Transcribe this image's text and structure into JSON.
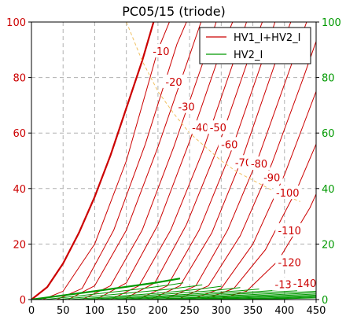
{
  "chart_data": {
    "type": "line",
    "title": "PC05/15 (triode)",
    "xlabel": "",
    "ylabel": "",
    "xlim": [
      0,
      450
    ],
    "ylim": [
      0,
      100
    ],
    "y2lim": [
      0,
      100
    ],
    "grid": true,
    "legend": {
      "placement": "top-right",
      "entries": [
        "HV1_I+HV2_I",
        "HV2_I"
      ]
    },
    "x_ticks": [
      "0",
      "50",
      "100",
      "150",
      "200",
      "250",
      "300",
      "350",
      "400",
      "450"
    ],
    "y_ticks": [
      "0",
      "20",
      "40",
      "60",
      "80",
      "100"
    ],
    "y2_ticks": [
      "0",
      "20",
      "40",
      "60",
      "80",
      "100"
    ],
    "colors": {
      "total_current": "#cc0000",
      "screen_current": "#009900",
      "y_left_ticks": "#cc0000",
      "y_right_ticks": "#009900",
      "dissipation_limit": "#f0c060",
      "grid": "#b0b0b0"
    },
    "series": [
      {
        "name": "HV1_I+HV2_I",
        "grid_voltage": "0",
        "x": [
          0,
          25,
          50,
          75,
          100,
          125,
          150,
          175,
          193
        ],
        "y": [
          0,
          4.5,
          13,
          24,
          37,
          52,
          69,
          86,
          100
        ]
      },
      {
        "grid_voltage": "-10",
        "x": [
          18,
          50,
          100,
          150,
          200,
          218
        ],
        "y": [
          0,
          3,
          20,
          50,
          90,
          100
        ]
      },
      {
        "grid_voltage": "-20",
        "x": [
          40,
          80,
          130,
          180,
          230,
          245
        ],
        "y": [
          0,
          4,
          25,
          56,
          92,
          100
        ]
      },
      {
        "grid_voltage": "-30",
        "x": [
          58,
          100,
          150,
          200,
          250,
          268
        ],
        "y": [
          0,
          5,
          25,
          55,
          88,
          100
        ]
      },
      {
        "grid_voltage": "-40",
        "x": [
          80,
          125,
          175,
          225,
          275,
          292
        ],
        "y": [
          0,
          5,
          25,
          55,
          88,
          100
        ]
      },
      {
        "grid_voltage": "-50",
        "x": [
          102,
          150,
          200,
          250,
          300,
          318
        ],
        "y": [
          0,
          6,
          27,
          57,
          90,
          100
        ]
      },
      {
        "grid_voltage": "-60",
        "x": [
          125,
          170,
          220,
          270,
          320,
          340
        ],
        "y": [
          0,
          5,
          25,
          53,
          86,
          100
        ]
      },
      {
        "grid_voltage": "-70",
        "x": [
          145,
          195,
          245,
          295,
          345,
          365
        ],
        "y": [
          0,
          6,
          27,
          55,
          88,
          100
        ]
      },
      {
        "grid_voltage": "-80",
        "x": [
          168,
          215,
          265,
          315,
          365,
          385
        ],
        "y": [
          0,
          5,
          25,
          53,
          86,
          100
        ]
      },
      {
        "grid_voltage": "-90",
        "x": [
          188,
          235,
          285,
          335,
          385,
          410
        ],
        "y": [
          0,
          5,
          24,
          52,
          85,
          100
        ]
      },
      {
        "grid_voltage": "-100",
        "x": [
          210,
          260,
          310,
          360,
          410,
          435
        ],
        "y": [
          0,
          5,
          25,
          52,
          84,
          100
        ]
      },
      {
        "grid_voltage": "-110",
        "x": [
          230,
          280,
          330,
          380,
          430,
          450
        ],
        "y": [
          0,
          5,
          23,
          49,
          80,
          93
        ]
      },
      {
        "grid_voltage": "-120",
        "x": [
          252,
          300,
          350,
          400,
          450
        ],
        "y": [
          0,
          4,
          20,
          45,
          75
        ]
      },
      {
        "grid_voltage": "-130",
        "x": [
          272,
          320,
          370,
          420,
          450
        ],
        "y": [
          0,
          4,
          18,
          40,
          56
        ]
      },
      {
        "grid_voltage": "-140",
        "x": [
          292,
          340,
          390,
          440,
          450
        ],
        "y": [
          0,
          3,
          14,
          33,
          38
        ]
      },
      {
        "name": "HV2_I",
        "grid_voltage": "0",
        "x": [
          0,
          50,
          100,
          150,
          200,
          235
        ],
        "y": [
          0,
          1.5,
          3,
          4.6,
          6.2,
          7.6
        ]
      },
      {
        "grid_voltage": "-10",
        "x": [
          20,
          70,
          120,
          170,
          220,
          240
        ],
        "y": [
          0,
          1.2,
          2.5,
          3.8,
          5.3,
          6
        ]
      },
      {
        "grid_voltage": "-20",
        "x": [
          40,
          100,
          160,
          220,
          270
        ],
        "y": [
          0,
          1.2,
          2.5,
          3.8,
          5.3
        ]
      },
      {
        "grid_voltage": "-30",
        "x": [
          60,
          130,
          200,
          260,
          300
        ],
        "y": [
          0,
          1.1,
          2.3,
          3.6,
          4.8
        ]
      },
      {
        "grid_voltage": "-40",
        "x": [
          80,
          150,
          220,
          290,
          330
        ],
        "y": [
          0,
          1,
          2.1,
          3.3,
          4.3
        ]
      },
      {
        "grid_voltage": "-50",
        "x": [
          100,
          180,
          260,
          330,
          360
        ],
        "y": [
          0,
          1,
          2.1,
          3.2,
          3.8
        ]
      },
      {
        "grid_voltage": "-60",
        "x": [
          125,
          200,
          280,
          360,
          390
        ],
        "y": [
          0,
          0.9,
          1.9,
          2.9,
          3.4
        ]
      },
      {
        "grid_voltage": "-70",
        "x": [
          145,
          230,
          310,
          390,
          420
        ],
        "y": [
          0,
          0.9,
          1.8,
          2.8,
          3.2
        ]
      },
      {
        "grid_voltage": "-80",
        "x": [
          168,
          260,
          340,
          420,
          450
        ],
        "y": [
          0,
          0.8,
          1.7,
          2.6,
          3
        ]
      },
      {
        "grid_voltage": "-90",
        "x": [
          188,
          280,
          370,
          450
        ],
        "y": [
          0,
          0.8,
          1.6,
          2.5
        ]
      },
      {
        "grid_voltage": "-100",
        "x": [
          210,
          310,
          400,
          450
        ],
        "y": [
          0,
          0.7,
          1.5,
          2
        ]
      },
      {
        "grid_voltage": "-110",
        "x": [
          230,
          330,
          420,
          450
        ],
        "y": [
          0,
          0.6,
          1.3,
          1.6
        ]
      },
      {
        "grid_voltage": "-120",
        "x": [
          252,
          360,
          450
        ],
        "y": [
          0,
          0.5,
          1.2
        ]
      },
      {
        "grid_voltage": "-130",
        "x": [
          272,
          380,
          450
        ],
        "y": [
          0,
          0.4,
          0.9
        ]
      },
      {
        "grid_voltage": "-140",
        "x": [
          292,
          400,
          450
        ],
        "y": [
          0,
          0.3,
          0.6
        ]
      },
      {
        "role": "dissipation-limit",
        "x": [
          150,
          175,
          200,
          225,
          250,
          275,
          300,
          325,
          350,
          375,
          400,
          425
        ],
        "y": [
          100,
          86,
          75,
          67,
          60,
          55,
          50,
          46,
          43,
          40,
          37.5,
          35.3
        ]
      }
    ],
    "curve_labels": [
      {
        "text": "-10",
        "x": 205,
        "y": 89.5
      },
      {
        "text": "-20",
        "x": 225,
        "y": 78.5
      },
      {
        "text": "-30",
        "x": 245,
        "y": 69.5
      },
      {
        "text": "-40",
        "x": 267,
        "y": 62
      },
      {
        "text": "-50",
        "x": 295,
        "y": 62
      },
      {
        "text": "-60",
        "x": 313,
        "y": 56
      },
      {
        "text": "-70",
        "x": 335,
        "y": 49.5
      },
      {
        "text": "-80",
        "x": 360,
        "y": 49
      },
      {
        "text": "-90",
        "x": 380,
        "y": 44
      },
      {
        "text": "-100",
        "x": 405,
        "y": 38.5
      },
      {
        "text": "-110",
        "x": 408,
        "y": 25
      },
      {
        "text": "-120",
        "x": 408,
        "y": 13.5
      },
      {
        "text": "-13",
        "x": 398,
        "y": 5.5
      },
      {
        "text": "-140",
        "x": 432,
        "y": 6
      }
    ]
  }
}
